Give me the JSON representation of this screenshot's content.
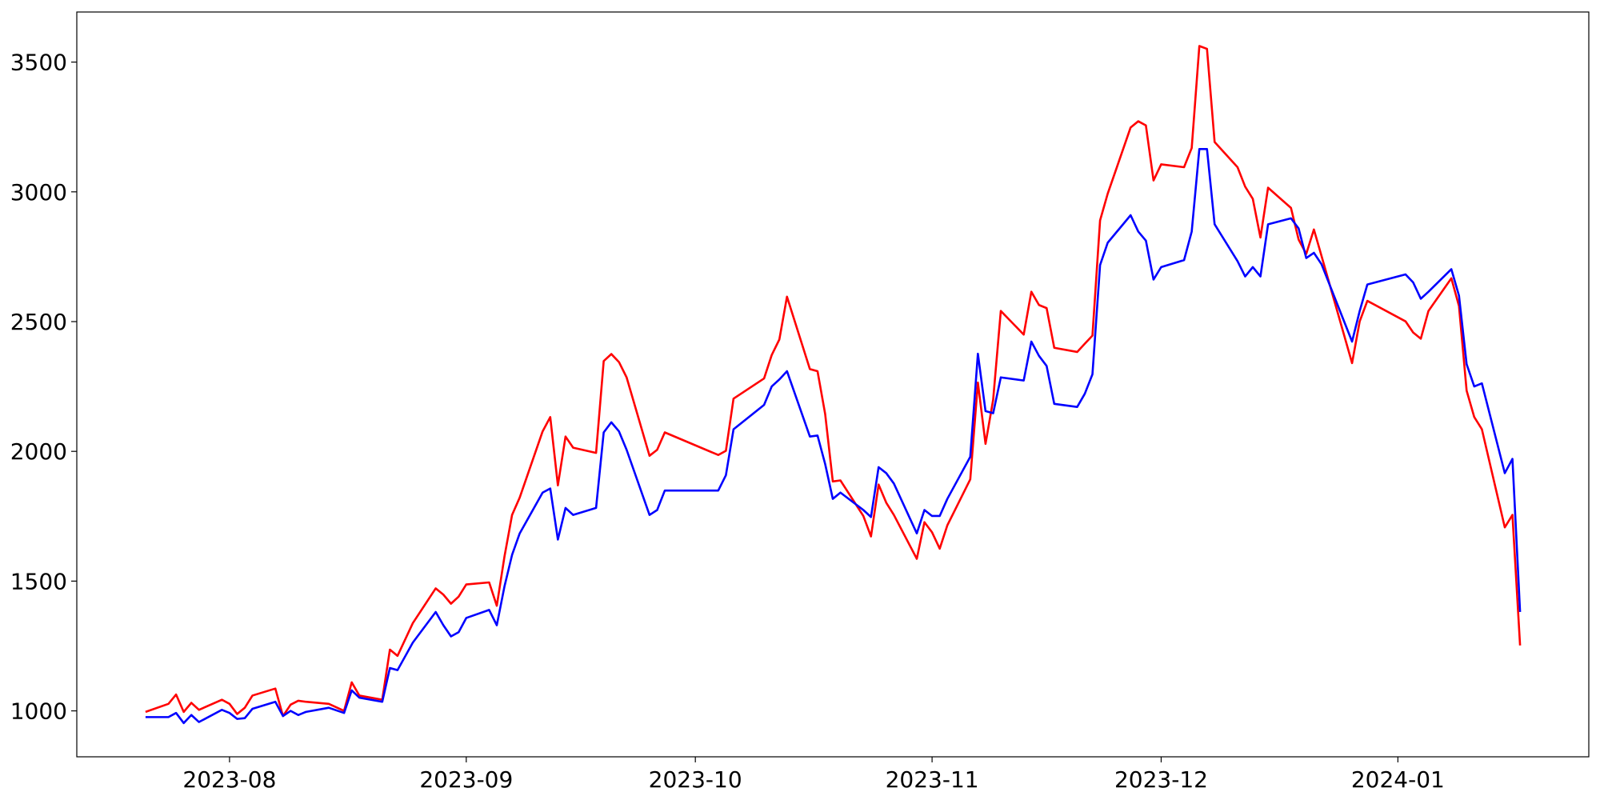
{
  "chart_data": {
    "type": "line",
    "x": [
      "2023-07-21",
      "2023-07-24",
      "2023-07-25",
      "2023-07-26",
      "2023-07-27",
      "2023-07-28",
      "2023-07-31",
      "2023-08-01",
      "2023-08-02",
      "2023-08-03",
      "2023-08-04",
      "2023-08-07",
      "2023-08-08",
      "2023-08-09",
      "2023-08-10",
      "2023-08-11",
      "2023-08-14",
      "2023-08-16",
      "2023-08-17",
      "2023-08-18",
      "2023-08-21",
      "2023-08-22",
      "2023-08-23",
      "2023-08-25",
      "2023-08-28",
      "2023-08-29",
      "2023-08-30",
      "2023-08-31",
      "2023-09-01",
      "2023-09-04",
      "2023-09-05",
      "2023-09-06",
      "2023-09-07",
      "2023-09-08",
      "2023-09-11",
      "2023-09-12",
      "2023-09-13",
      "2023-09-14",
      "2023-09-15",
      "2023-09-18",
      "2023-09-19",
      "2023-09-20",
      "2023-09-21",
      "2023-09-22",
      "2023-09-25",
      "2023-09-26",
      "2023-09-27",
      "2023-10-04",
      "2023-10-05",
      "2023-10-06",
      "2023-10-10",
      "2023-10-11",
      "2023-10-12",
      "2023-10-13",
      "2023-10-16",
      "2023-10-17",
      "2023-10-18",
      "2023-10-19",
      "2023-10-20",
      "2023-10-23",
      "2023-10-24",
      "2023-10-25",
      "2023-10-26",
      "2023-10-27",
      "2023-10-30",
      "2023-10-31",
      "2023-11-01",
      "2023-11-02",
      "2023-11-03",
      "2023-11-06",
      "2023-11-07",
      "2023-11-08",
      "2023-11-09",
      "2023-11-10",
      "2023-11-13",
      "2023-11-14",
      "2023-11-15",
      "2023-11-16",
      "2023-11-17",
      "2023-11-20",
      "2023-11-21",
      "2023-11-22",
      "2023-11-23",
      "2023-11-24",
      "2023-11-27",
      "2023-11-28",
      "2023-11-29",
      "2023-11-30",
      "2023-12-01",
      "2023-12-04",
      "2023-12-05",
      "2023-12-06",
      "2023-12-07",
      "2023-12-08",
      "2023-12-11",
      "2023-12-12",
      "2023-12-13",
      "2023-12-14",
      "2023-12-15",
      "2023-12-18",
      "2023-12-19",
      "2023-12-20",
      "2023-12-21",
      "2023-12-22",
      "2023-12-26",
      "2023-12-27",
      "2023-12-28",
      "2024-01-02",
      "2024-01-03",
      "2024-01-04",
      "2024-01-05",
      "2024-01-08",
      "2024-01-09",
      "2024-01-10",
      "2024-01-11",
      "2024-01-12",
      "2024-01-15",
      "2024-01-16",
      "2024-01-17"
    ],
    "series": [
      {
        "color": "#ff0000",
        "values": [
          996,
          1027,
          1063,
          996,
          1031,
          1004,
          1043,
          1027,
          988,
          1012,
          1059,
          1086,
          980,
          1024,
          1039,
          1035,
          1027,
          1000,
          1110,
          1059,
          1043,
          1236,
          1212,
          1338,
          1472,
          1448,
          1413,
          1440,
          1487,
          1495,
          1405,
          1594,
          1755,
          1822,
          2077,
          2132,
          1869,
          2057,
          2014,
          1994,
          2348,
          2375,
          2344,
          2285,
          1983,
          2006,
          2073,
          1986,
          2002,
          2203,
          2281,
          2371,
          2431,
          2596,
          2317,
          2309,
          2144,
          1884,
          1888,
          1751,
          1672,
          1872,
          1802,
          1755,
          1586,
          1727,
          1688,
          1625,
          1715,
          1892,
          2265,
          2029,
          2199,
          2541,
          2450,
          2615,
          2564,
          2552,
          2399,
          2383,
          2415,
          2446,
          2890,
          2993,
          3248,
          3272,
          3256,
          3044,
          3106,
          3095,
          3169,
          3562,
          3551,
          3192,
          3095,
          3020,
          2973,
          2824,
          3016,
          2938,
          2816,
          2761,
          2855,
          2753,
          2340,
          2501,
          2580,
          2501,
          2458,
          2434,
          2541,
          2667,
          2560,
          2234,
          2132,
          2085,
          1707,
          1755,
          1252
        ]
      },
      {
        "color": "#0000ff",
        "values": [
          976,
          976,
          992,
          953,
          984,
          957,
          1004,
          992,
          969,
          972,
          1008,
          1035,
          980,
          1000,
          984,
          996,
          1012,
          992,
          1079,
          1051,
          1035,
          1165,
          1157,
          1263,
          1381,
          1330,
          1287,
          1303,
          1358,
          1389,
          1330,
          1479,
          1601,
          1684,
          1841,
          1857,
          1660,
          1782,
          1755,
          1782,
          2073,
          2112,
          2077,
          2006,
          1755,
          1774,
          1849,
          1849,
          1908,
          2085,
          2179,
          2250,
          2277,
          2309,
          2057,
          2061,
          1951,
          1817,
          1841,
          1774,
          1747,
          1939,
          1916,
          1876,
          1684,
          1774,
          1751,
          1751,
          1817,
          1979,
          2376,
          2155,
          2147,
          2285,
          2273,
          2423,
          2368,
          2329,
          2183,
          2171,
          2222,
          2297,
          2718,
          2804,
          2910,
          2847,
          2812,
          2662,
          2710,
          2737,
          2847,
          3165,
          3165,
          2875,
          2733,
          2674,
          2710,
          2674,
          2875,
          2898,
          2859,
          2745,
          2765,
          2721,
          2423,
          2541,
          2643,
          2682,
          2651,
          2588,
          2615,
          2702,
          2600,
          2336,
          2250,
          2262,
          1916,
          1971,
          1381
        ]
      }
    ],
    "xlim": [
      "2023-07-12",
      "2024-01-26"
    ],
    "xticks": [
      {
        "value": "2023-08-01",
        "label": "2023-08"
      },
      {
        "value": "2023-09-01",
        "label": "2023-09"
      },
      {
        "value": "2023-10-01",
        "label": "2023-10"
      },
      {
        "value": "2023-11-01",
        "label": "2023-11"
      },
      {
        "value": "2023-12-01",
        "label": "2023-12"
      },
      {
        "value": "2024-01-01",
        "label": "2024-01"
      }
    ],
    "ylim": [
      823,
      3693
    ],
    "yticks": [
      1000,
      1500,
      2000,
      2500,
      3000,
      3500
    ],
    "grid": false
  }
}
